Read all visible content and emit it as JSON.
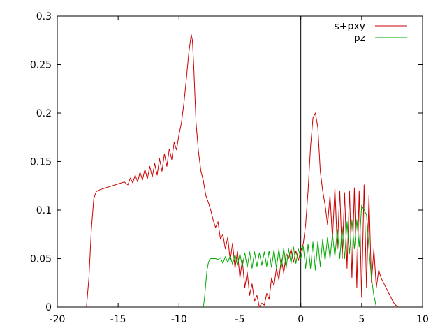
{
  "chart_data": {
    "type": "line",
    "title": "",
    "xlabel": "",
    "ylabel": "",
    "xlim": [
      -20,
      10
    ],
    "ylim": [
      0,
      0.3
    ],
    "xticks": [
      -20,
      -15,
      -10,
      -5,
      0,
      5,
      10
    ],
    "xtick_labels": [
      "-20",
      "-15",
      "-10",
      "-5",
      "0",
      "5",
      "10"
    ],
    "yticks": [
      0,
      0.05,
      0.1,
      0.15,
      0.2,
      0.25,
      0.3
    ],
    "ytick_labels": [
      "0",
      "0.05",
      "0.1",
      "0.15",
      "0.2",
      "0.25",
      "0.3"
    ],
    "grid": false,
    "legend_position": "top-right",
    "vertical_reference_line_x": 0,
    "colors": {
      "s+pxy": "#cc0000",
      "pz": "#00aa00",
      "reference_line": "#000000"
    },
    "series": [
      {
        "name": "s+pxy",
        "color": "#cc0000",
        "x": [
          -17.6,
          -17.4,
          -17.2,
          -17.0,
          -16.8,
          -16.5,
          -16.0,
          -15.5,
          -15.0,
          -14.5,
          -14.2,
          -14.0,
          -13.8,
          -13.6,
          -13.4,
          -13.2,
          -13.0,
          -12.8,
          -12.6,
          -12.4,
          -12.2,
          -12.0,
          -11.8,
          -11.6,
          -11.4,
          -11.2,
          -11.0,
          -10.8,
          -10.6,
          -10.4,
          -10.2,
          -10.0,
          -9.8,
          -9.6,
          -9.4,
          -9.2,
          -9.0,
          -8.9,
          -8.8,
          -8.7,
          -8.6,
          -8.4,
          -8.2,
          -8.0,
          -7.8,
          -7.6,
          -7.4,
          -7.2,
          -7.0,
          -6.8,
          -6.6,
          -6.4,
          -6.2,
          -6.0,
          -5.8,
          -5.6,
          -5.4,
          -5.2,
          -5.0,
          -4.8,
          -4.6,
          -4.4,
          -4.2,
          -4.0,
          -3.8,
          -3.6,
          -3.4,
          -3.2,
          -3.0,
          -2.8,
          -2.6,
          -2.4,
          -2.2,
          -2.0,
          -1.8,
          -1.6,
          -1.4,
          -1.2,
          -1.0,
          -0.8,
          -0.6,
          -0.4,
          -0.2,
          0.0,
          0.2,
          0.4,
          0.6,
          0.8,
          1.0,
          1.2,
          1.4,
          1.6,
          1.8,
          2.0,
          2.2,
          2.4,
          2.6,
          2.8,
          3.0,
          3.2,
          3.4,
          3.6,
          3.8,
          4.0,
          4.2,
          4.4,
          4.6,
          4.8,
          5.0,
          5.2,
          5.4,
          5.6,
          5.8,
          6.0,
          6.2,
          6.4,
          6.6,
          6.8,
          7.0,
          7.2,
          7.4,
          7.6,
          7.8,
          8.0
        ],
        "values": [
          0.0,
          0.03,
          0.08,
          0.112,
          0.119,
          0.121,
          0.123,
          0.125,
          0.127,
          0.129,
          0.126,
          0.133,
          0.128,
          0.136,
          0.129,
          0.139,
          0.131,
          0.142,
          0.132,
          0.145,
          0.134,
          0.148,
          0.136,
          0.153,
          0.14,
          0.158,
          0.145,
          0.163,
          0.152,
          0.17,
          0.162,
          0.178,
          0.19,
          0.21,
          0.235,
          0.262,
          0.281,
          0.275,
          0.25,
          0.22,
          0.19,
          0.16,
          0.14,
          0.13,
          0.115,
          0.108,
          0.1,
          0.09,
          0.082,
          0.088,
          0.07,
          0.075,
          0.06,
          0.072,
          0.048,
          0.066,
          0.04,
          0.058,
          0.03,
          0.048,
          0.02,
          0.036,
          0.012,
          0.024,
          0.006,
          0.012,
          0.0,
          0.004,
          0.002,
          0.014,
          0.008,
          0.03,
          0.022,
          0.04,
          0.028,
          0.05,
          0.035,
          0.055,
          0.05,
          0.06,
          0.046,
          0.058,
          0.048,
          0.058,
          0.065,
          0.085,
          0.12,
          0.165,
          0.195,
          0.2,
          0.185,
          0.14,
          0.12,
          0.105,
          0.085,
          0.115,
          0.07,
          0.123,
          0.06,
          0.12,
          0.05,
          0.118,
          0.04,
          0.12,
          0.03,
          0.123,
          0.02,
          0.12,
          0.01,
          0.126,
          0.02,
          0.115,
          0.025,
          0.06,
          0.02,
          0.038,
          0.03,
          0.025,
          0.02,
          0.015,
          0.01,
          0.005,
          0.002,
          0.0
        ]
      },
      {
        "name": "pz",
        "color": "#00aa00",
        "x": [
          -8.0,
          -7.9,
          -7.8,
          -7.7,
          -7.6,
          -7.5,
          -7.4,
          -7.2,
          -7.0,
          -6.8,
          -6.6,
          -6.4,
          -6.2,
          -6.0,
          -5.8,
          -5.6,
          -5.4,
          -5.2,
          -5.0,
          -4.8,
          -4.6,
          -4.4,
          -4.2,
          -4.0,
          -3.8,
          -3.6,
          -3.4,
          -3.2,
          -3.0,
          -2.8,
          -2.6,
          -2.4,
          -2.2,
          -2.0,
          -1.8,
          -1.6,
          -1.4,
          -1.2,
          -1.0,
          -0.8,
          -0.6,
          -0.4,
          -0.2,
          0.0,
          0.2,
          0.4,
          0.6,
          0.8,
          1.0,
          1.2,
          1.4,
          1.6,
          1.8,
          2.0,
          2.2,
          2.4,
          2.6,
          2.8,
          3.0,
          3.2,
          3.4,
          3.6,
          3.8,
          4.0,
          4.2,
          4.4,
          4.6,
          4.8,
          5.0,
          5.2,
          5.4,
          5.6,
          5.8,
          6.0,
          6.2
        ],
        "values": [
          0.0,
          0.01,
          0.025,
          0.038,
          0.045,
          0.049,
          0.05,
          0.05,
          0.05,
          0.049,
          0.051,
          0.045,
          0.052,
          0.046,
          0.053,
          0.044,
          0.054,
          0.043,
          0.055,
          0.042,
          0.056,
          0.041,
          0.057,
          0.04,
          0.057,
          0.042,
          0.056,
          0.043,
          0.057,
          0.042,
          0.058,
          0.041,
          0.059,
          0.04,
          0.06,
          0.04,
          0.061,
          0.04,
          0.06,
          0.045,
          0.062,
          0.045,
          0.06,
          0.05,
          0.063,
          0.04,
          0.065,
          0.04,
          0.067,
          0.038,
          0.068,
          0.042,
          0.07,
          0.048,
          0.072,
          0.05,
          0.075,
          0.052,
          0.08,
          0.05,
          0.083,
          0.05,
          0.088,
          0.055,
          0.09,
          0.06,
          0.09,
          0.062,
          0.105,
          0.1,
          0.095,
          0.06,
          0.03,
          0.012,
          0.0
        ]
      }
    ]
  }
}
